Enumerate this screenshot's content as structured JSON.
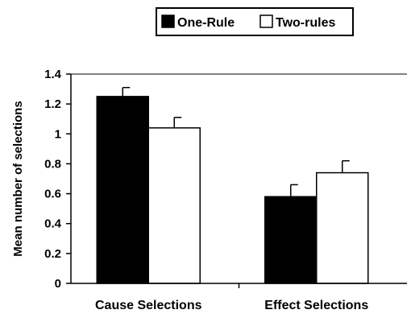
{
  "chart_data": {
    "type": "bar",
    "categories": [
      "Cause Selections",
      "Effect Selections"
    ],
    "series": [
      {
        "name": "One-Rule",
        "values": [
          1.25,
          0.58
        ],
        "errors": [
          0.06,
          0.08
        ],
        "color": "#000000"
      },
      {
        "name": "Two-rules",
        "values": [
          1.04,
          0.74
        ],
        "errors": [
          0.07,
          0.08
        ],
        "color": "#ffffff"
      }
    ],
    "xlabel": "",
    "ylabel": "Mean number of selections",
    "ylim": [
      0,
      1.4
    ],
    "yticks": [
      "0",
      "0.2",
      "0.4",
      "0.6",
      "0.8",
      "1",
      "1.2",
      "1.4"
    ],
    "ytick_values": [
      0,
      0.2,
      0.4,
      0.6,
      0.8,
      1,
      1.2,
      1.4
    ],
    "grid": false,
    "legend_position": "top"
  }
}
